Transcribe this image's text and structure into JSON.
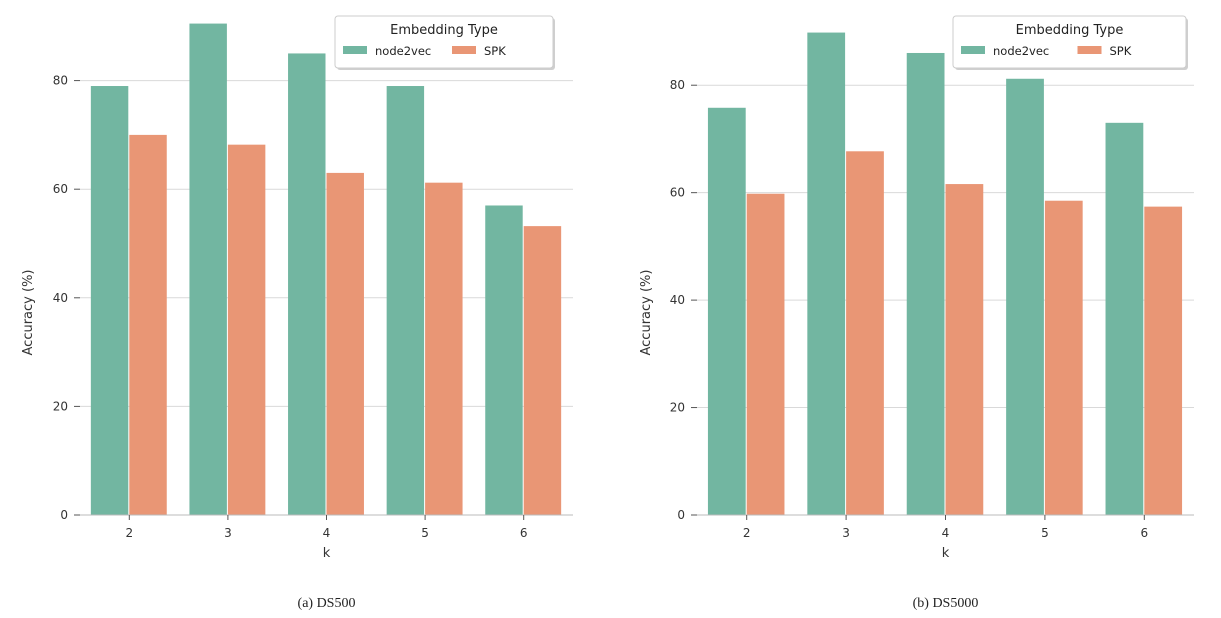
{
  "colors": {
    "node2vec": "#72b6a1",
    "SPK": "#e99675",
    "grid": "#d9d9d9",
    "axis": "#cccccc"
  },
  "chart_data": [
    {
      "type": "bar",
      "caption": "(a) DS500",
      "xlabel": "k",
      "ylabel": "Accuracy (%)",
      "categories": [
        "2",
        "3",
        "4",
        "5",
        "6"
      ],
      "ylim": [
        0,
        93
      ],
      "yticks": [
        0,
        20,
        40,
        60,
        80
      ],
      "grid": true,
      "legend": {
        "title": "Embedding Type",
        "placement": "top-right"
      },
      "series": [
        {
          "name": "node2vec",
          "values": [
            79,
            90.5,
            85,
            79,
            57
          ]
        },
        {
          "name": "SPK",
          "values": [
            70,
            68.2,
            63,
            61.2,
            53.2
          ]
        }
      ]
    },
    {
      "type": "bar",
      "caption": "(b) DS5000",
      "xlabel": "k",
      "ylabel": "Accuracy (%)",
      "categories": [
        "2",
        "3",
        "4",
        "5",
        "6"
      ],
      "ylim": [
        0,
        94
      ],
      "yticks": [
        0,
        20,
        40,
        60,
        80
      ],
      "grid": true,
      "legend": {
        "title": "Embedding Type",
        "placement": "top-right"
      },
      "series": [
        {
          "name": "node2vec",
          "values": [
            75.8,
            89.8,
            86,
            81.2,
            73
          ]
        },
        {
          "name": "SPK",
          "values": [
            59.8,
            67.7,
            61.6,
            58.5,
            57.4
          ]
        }
      ]
    }
  ]
}
